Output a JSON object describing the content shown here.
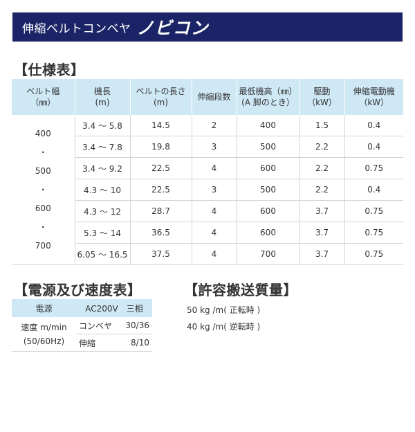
{
  "banner": {
    "subtitle": "伸縮ベルトコンベヤ",
    "brand": "ノビコン"
  },
  "spec": {
    "title": "【仕様表】",
    "headers": [
      [
        "ベルト幅",
        "（㎜）"
      ],
      [
        "機長",
        "(m)"
      ],
      [
        "ベルトの長さ",
        "(m)"
      ],
      [
        "伸縮段数",
        ""
      ],
      [
        "最低機高（㎜）",
        "(A 脚のとき）"
      ],
      [
        "駆動",
        "（kW）"
      ],
      [
        "伸縮電動機",
        "（kW）"
      ]
    ],
    "width_values": [
      "400",
      "・",
      "500",
      "・",
      "600",
      "・",
      "700"
    ],
    "rows": [
      [
        "3.4 ～ 5.8",
        "14.5",
        "2",
        "400",
        "1.5",
        "0.4"
      ],
      [
        "3.4 ～ 7.8",
        "19.8",
        "3",
        "500",
        "2.2",
        "0.4"
      ],
      [
        "3.4 ～ 9.2",
        "22.5",
        "4",
        "600",
        "2.2",
        "0.75"
      ],
      [
        "4.3 ～ 10",
        "22.5",
        "3",
        "500",
        "2.2",
        "0.4"
      ],
      [
        "4.3 ～ 12",
        "28.7",
        "4",
        "600",
        "3.7",
        "0.75"
      ],
      [
        "5.3 ～ 14",
        "36.5",
        "4",
        "600",
        "3.7",
        "0.75"
      ],
      [
        "6.05 ～ 16.5",
        "37.5",
        "4",
        "700",
        "3.7",
        "0.75"
      ]
    ]
  },
  "speed": {
    "title": "【電源及び速度表】",
    "power_label": "電源",
    "power_value": "AC200V　三相",
    "speed_label_1": "速度 m/min",
    "speed_label_2": "(50/60Hz)",
    "conveyor_label": "コンベヤ",
    "conveyor_value": "30/36",
    "telescopic_label": "伸縮",
    "telescopic_value": "8/10"
  },
  "load": {
    "title": "【許容搬送質量】",
    "forward": "50 kg /m( 正転時 )",
    "reverse": "40 kg /m( 逆転時 )"
  }
}
